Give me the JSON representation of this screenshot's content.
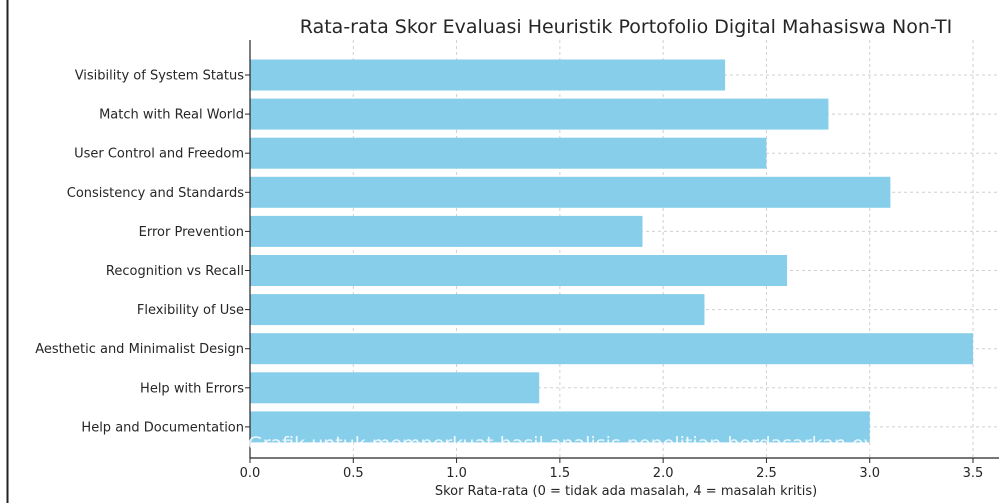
{
  "window": {
    "border_color": "#222222"
  },
  "chart_data": {
    "type": "bar",
    "orientation": "horizontal",
    "title": "Rata-rata Skor Evaluasi Heuristik Portofolio Digital Mahasiswa Non-TI",
    "xlabel": "Skor Rata-rata (0 = tidak ada masalah, 4 = masalah kritis)",
    "ylabel": "",
    "categories": [
      "Visibility of System Status",
      "Match with Real World",
      "User Control and Freedom",
      "Consistency and Standards",
      "Error Prevention",
      "Recognition vs Recall",
      "Flexibility of Use",
      "Aesthetic and Minimalist Design",
      "Help with Errors",
      "Help and Documentation"
    ],
    "values": [
      2.3,
      2.8,
      2.5,
      3.1,
      1.9,
      2.6,
      2.2,
      3.5,
      1.4,
      3.0
    ],
    "xlim": [
      0,
      3.65
    ],
    "xticks": [
      0.0,
      0.5,
      1.0,
      1.5,
      2.0,
      2.5,
      3.0,
      3.5
    ],
    "xtick_labels": [
      "0.0",
      "0.5",
      "1.0",
      "1.5",
      "2.0",
      "2.5",
      "3.0",
      "3.5"
    ],
    "grid": true,
    "grid_style": "dashed",
    "bar_color": "#87ceeb",
    "grid_color": "#d0d0d0",
    "overlay_text": "Grafik untuk memperkuat hasil analisis penelitian berdasarkan eva"
  }
}
